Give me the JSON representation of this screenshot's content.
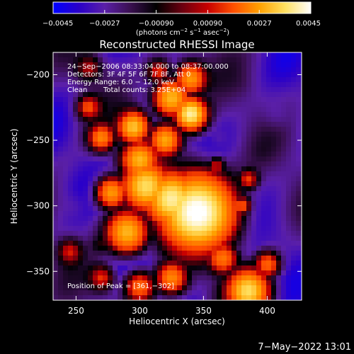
{
  "chart_data": {
    "type": "heatmap",
    "title": "Reconstructed RHESSI Image",
    "xlabel": "Heliocentric X (arcsec)",
    "ylabel": "Heliocentric Y (arcsec)",
    "xlim": [
      232,
      427
    ],
    "ylim": [
      -372,
      -183
    ],
    "x_ticks": [
      250,
      300,
      350,
      400
    ],
    "y_ticks": [
      -200,
      -250,
      -300,
      -350
    ],
    "x_tick_labels": [
      "250",
      "300",
      "350",
      "400"
    ],
    "y_tick_labels": [
      "−200",
      "−250",
      "−300",
      "−350"
    ],
    "colorbar": {
      "range": [
        -0.0045,
        0.0045
      ],
      "tick_labels": [
        "−0.0045",
        "−0.0027",
        "−0.00090",
        "0.00090",
        "0.0027",
        "0.0045"
      ],
      "tick_values": [
        -0.0045,
        -0.0027,
        -0.0009,
        0.0009,
        0.0027,
        0.0045
      ],
      "unit_prefix": "(photons cm",
      "unit_exp1": "−2",
      "unit_mid": " s",
      "unit_exp2": "−1",
      "unit_post": " asec",
      "unit_exp3": "−2",
      "unit_close": ")",
      "colormap": [
        "#0000ff",
        "#2a00c8",
        "#5a1fa8",
        "#3a1050",
        "#000000",
        "#6a0010",
        "#c80000",
        "#ff5000",
        "#ffa000",
        "#ffe060",
        "#ffffff"
      ]
    },
    "annotations": {
      "time": "24−Sep−2006 08:33:04.000 to 08:37:00.000",
      "detectors": "Detectors: 3F 4F 5F 6F 7F 8F, Att 0",
      "energy": "Energy Range: 6.0 − 12.0 keV",
      "method": "Clean",
      "counts": "Total counts: 3.25E+04",
      "peak": "Position of Peak = [361,−302]"
    },
    "peak": [
      361,
      -302
    ],
    "blobs": [
      {
        "x": 345,
        "y": -305,
        "r": 28,
        "v": 0.0047
      },
      {
        "x": 325,
        "y": -295,
        "r": 20,
        "v": 0.004
      },
      {
        "x": 305,
        "y": -285,
        "r": 18,
        "v": 0.0036
      },
      {
        "x": 300,
        "y": -265,
        "r": 14,
        "v": 0.003
      },
      {
        "x": 340,
        "y": -230,
        "r": 12,
        "v": 0.004
      },
      {
        "x": 325,
        "y": -218,
        "r": 14,
        "v": 0.003
      },
      {
        "x": 340,
        "y": -203,
        "r": 12,
        "v": 0.0026
      },
      {
        "x": 295,
        "y": -240,
        "r": 12,
        "v": 0.0032
      },
      {
        "x": 320,
        "y": -250,
        "r": 12,
        "v": 0.0028
      },
      {
        "x": 270,
        "y": -248,
        "r": 10,
        "v": 0.0024
      },
      {
        "x": 260,
        "y": -225,
        "r": 9,
        "v": 0.0018
      },
      {
        "x": 278,
        "y": -290,
        "r": 12,
        "v": 0.0026
      },
      {
        "x": 290,
        "y": -320,
        "r": 16,
        "v": 0.003
      },
      {
        "x": 365,
        "y": -340,
        "r": 12,
        "v": 0.0022
      },
      {
        "x": 385,
        "y": -365,
        "r": 16,
        "v": 0.0036
      },
      {
        "x": 325,
        "y": -355,
        "r": 12,
        "v": 0.0024
      },
      {
        "x": 300,
        "y": -362,
        "r": 12,
        "v": 0.002
      },
      {
        "x": 400,
        "y": -345,
        "r": 10,
        "v": 0.002
      },
      {
        "x": 385,
        "y": -280,
        "r": 8,
        "v": 0.0016
      },
      {
        "x": 380,
        "y": -300,
        "r": 8,
        "v": 0.0018
      },
      {
        "x": 270,
        "y": -355,
        "r": 10,
        "v": 0.0015
      },
      {
        "x": 260,
        "y": -195,
        "r": 10,
        "v": 0.0012
      },
      {
        "x": 315,
        "y": -198,
        "r": 10,
        "v": 0.0015
      },
      {
        "x": 360,
        "y": -270,
        "r": 8,
        "v": 0.0014
      },
      {
        "x": 245,
        "y": -335,
        "r": 9,
        "v": 0.0014
      },
      {
        "x": 407,
        "y": -232,
        "r": 11,
        "v": -0.0035
      },
      {
        "x": 415,
        "y": -320,
        "r": 14,
        "v": -0.003
      },
      {
        "x": 382,
        "y": -208,
        "r": 9,
        "v": -0.0025
      },
      {
        "x": 240,
        "y": -265,
        "r": 10,
        "v": -0.0025
      },
      {
        "x": 250,
        "y": -300,
        "r": 10,
        "v": -0.002
      },
      {
        "x": 362,
        "y": -248,
        "r": 7,
        "v": -0.002
      },
      {
        "x": 395,
        "y": -260,
        "r": 9,
        "v": -0.0025
      },
      {
        "x": 268,
        "y": -330,
        "r": 6,
        "v": -0.0015
      }
    ]
  },
  "footer": {
    "timestamp": "7−May−2022 13:01"
  }
}
